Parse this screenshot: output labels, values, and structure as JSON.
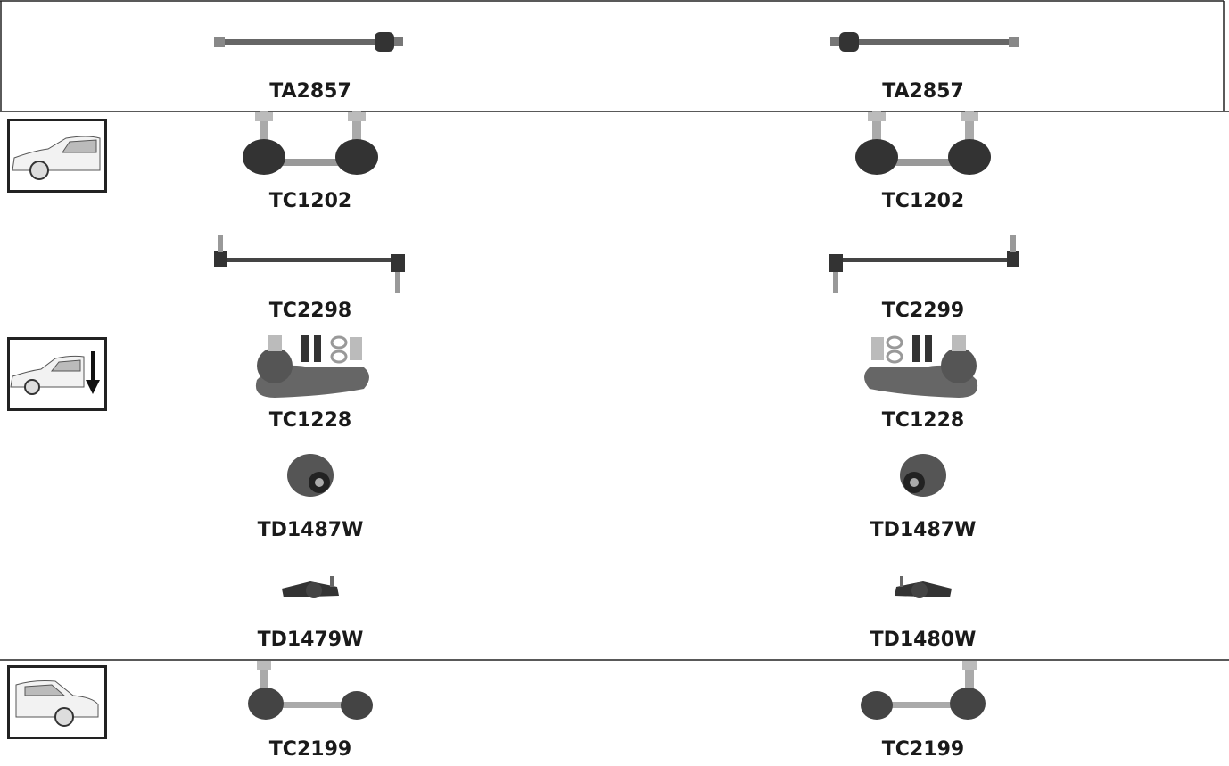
{
  "sections": [
    {
      "rows": [
        {
          "left": "TA2857",
          "right": "TA2857"
        }
      ]
    },
    {
      "rows": [
        {
          "left": "TC1202",
          "right": "TC1202"
        },
        {
          "left": "TC2298",
          "right": "TC2299"
        }
      ]
    },
    {
      "rows": [
        {
          "left": "TC1228",
          "right": "TC1228"
        },
        {
          "left": "TD1487W",
          "right": "TD1487W"
        },
        {
          "left": "TD1479W",
          "right": "TD1480W"
        }
      ]
    },
    {
      "rows": [
        {
          "left": "TC2199",
          "right": "TC2199"
        }
      ]
    }
  ]
}
